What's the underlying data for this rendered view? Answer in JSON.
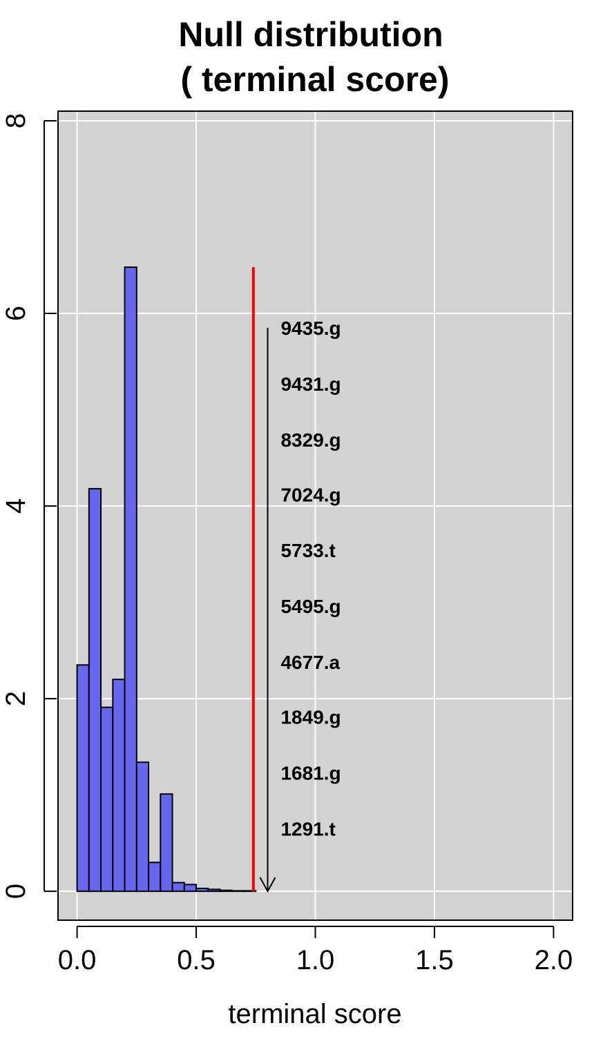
{
  "chart_data": {
    "type": "bar",
    "title_lines": [
      "Null distribution",
      "( terminal score)"
    ],
    "xlabel": "terminal score",
    "ylabel": "",
    "xlim": [
      -0.08,
      2.08
    ],
    "ylim": [
      -0.3,
      8.1
    ],
    "x_ticks": [
      0.0,
      0.5,
      1.0,
      1.5,
      2.0
    ],
    "x_tick_labels": [
      "0.0",
      "0.5",
      "1.0",
      "1.5",
      "2.0"
    ],
    "y_ticks": [
      0,
      2,
      4,
      6,
      8
    ],
    "y_tick_labels": [
      "0",
      "2",
      "4",
      "6",
      "8"
    ],
    "grid": true,
    "bar_color": "#6666ee",
    "background_color": "#d3d3d3",
    "bins": [
      {
        "x0": 0.0,
        "x1": 0.05,
        "value": 2.35
      },
      {
        "x0": 0.05,
        "x1": 0.1,
        "value": 4.18
      },
      {
        "x0": 0.1,
        "x1": 0.15,
        "value": 1.91
      },
      {
        "x0": 0.15,
        "x1": 0.2,
        "value": 2.2
      },
      {
        "x0": 0.2,
        "x1": 0.25,
        "value": 6.48
      },
      {
        "x0": 0.25,
        "x1": 0.3,
        "value": 1.34
      },
      {
        "x0": 0.3,
        "x1": 0.35,
        "value": 0.3
      },
      {
        "x0": 0.35,
        "x1": 0.4,
        "value": 1.01
      },
      {
        "x0": 0.4,
        "x1": 0.45,
        "value": 0.09
      },
      {
        "x0": 0.45,
        "x1": 0.5,
        "value": 0.07
      },
      {
        "x0": 0.5,
        "x1": 0.55,
        "value": 0.03
      },
      {
        "x0": 0.55,
        "x1": 0.6,
        "value": 0.02
      },
      {
        "x0": 0.6,
        "x1": 0.65,
        "value": 0.01
      },
      {
        "x0": 0.65,
        "x1": 0.7,
        "value": 0.005
      },
      {
        "x0": 0.7,
        "x1": 0.75,
        "value": 0.005
      }
    ],
    "threshold_line": {
      "x": 0.74,
      "y0": 0,
      "y1": 6.48,
      "color": "#ff0000"
    },
    "arrow": {
      "x": 0.8,
      "y_top": 5.85,
      "y_bottom": 0
    },
    "annotations": [
      {
        "label": "9435.g",
        "y": 5.85
      },
      {
        "label": "9431.g",
        "y": 5.27
      },
      {
        "label": "8329.g",
        "y": 4.69
      },
      {
        "label": "7024.g",
        "y": 4.12
      },
      {
        "label": "5733.t",
        "y": 3.54
      },
      {
        "label": "5495.g",
        "y": 2.96
      },
      {
        "label": "4677.a",
        "y": 2.38
      },
      {
        "label": "1849.g",
        "y": 1.81
      },
      {
        "label": "1681.g",
        "y": 1.23
      },
      {
        "label": "1291.t",
        "y": 0.65
      }
    ],
    "annotation_x": 0.855
  }
}
